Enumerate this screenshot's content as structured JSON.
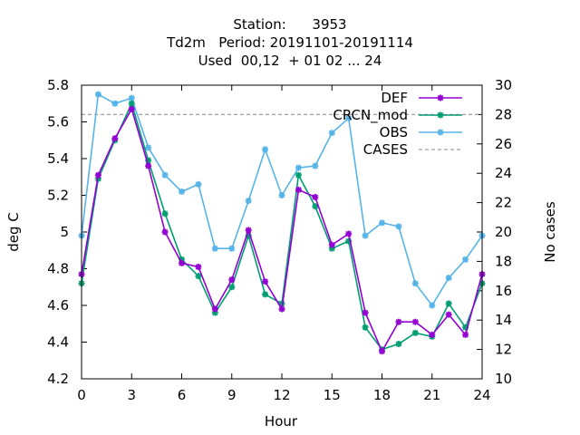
{
  "chart_data": {
    "type": "line",
    "title_lines": [
      "Station:      3953",
      "Td2m   Period: 20191101-20191114",
      "Used  00,12  + 01 02 ... 24"
    ],
    "xlabel": "Hour",
    "ylabel": "deg C",
    "y2label": "No cases",
    "xlim": [
      0,
      24
    ],
    "ylim": [
      4.2,
      5.8
    ],
    "y2lim": [
      10,
      30
    ],
    "xticks": [
      0,
      3,
      6,
      9,
      12,
      15,
      18,
      21,
      24
    ],
    "yticks": [
      "4.2",
      "4.4",
      "4.6",
      "4.8",
      "5",
      "5.2",
      "5.4",
      "5.6",
      "5.8"
    ],
    "y2ticks": [
      "10",
      "12",
      "14",
      "16",
      "18",
      "20",
      "22",
      "24",
      "26",
      "28",
      "30"
    ],
    "legend_position": "top-right",
    "x": [
      0,
      1,
      2,
      3,
      4,
      5,
      6,
      7,
      8,
      9,
      10,
      11,
      12,
      13,
      14,
      15,
      16,
      17,
      18,
      19,
      20,
      21,
      22,
      23,
      24
    ],
    "series": [
      {
        "name": "DEF",
        "axis": "left",
        "color": "#9400d3",
        "values": [
          4.77,
          5.31,
          5.51,
          5.67,
          5.36,
          5.0,
          4.83,
          4.81,
          4.58,
          4.74,
          5.01,
          4.73,
          4.58,
          5.23,
          5.19,
          4.93,
          4.99,
          4.56,
          4.35,
          4.51,
          4.51,
          4.44,
          4.55,
          4.44,
          4.77
        ]
      },
      {
        "name": "CRCN_mod",
        "axis": "left",
        "color": "#009e73",
        "values": [
          4.72,
          5.29,
          5.5,
          5.7,
          5.39,
          5.1,
          4.85,
          4.76,
          4.56,
          4.7,
          4.98,
          4.66,
          4.61,
          5.31,
          5.14,
          4.91,
          4.95,
          4.48,
          4.36,
          4.39,
          4.45,
          4.43,
          4.61,
          4.48,
          4.72
        ]
      },
      {
        "name": "OBS",
        "axis": "left",
        "color": "#56b4e9",
        "values": [
          4.98,
          5.75,
          5.7,
          5.73,
          5.46,
          5.31,
          5.22,
          5.26,
          4.91,
          4.91,
          5.17,
          5.45,
          5.2,
          5.35,
          5.36,
          5.54,
          5.62,
          4.98,
          5.05,
          5.03,
          4.72,
          4.6,
          4.75,
          4.85,
          4.98
        ]
      },
      {
        "name": "CASES",
        "axis": "right",
        "color": "#a0a0a0",
        "constant": 28
      }
    ]
  }
}
